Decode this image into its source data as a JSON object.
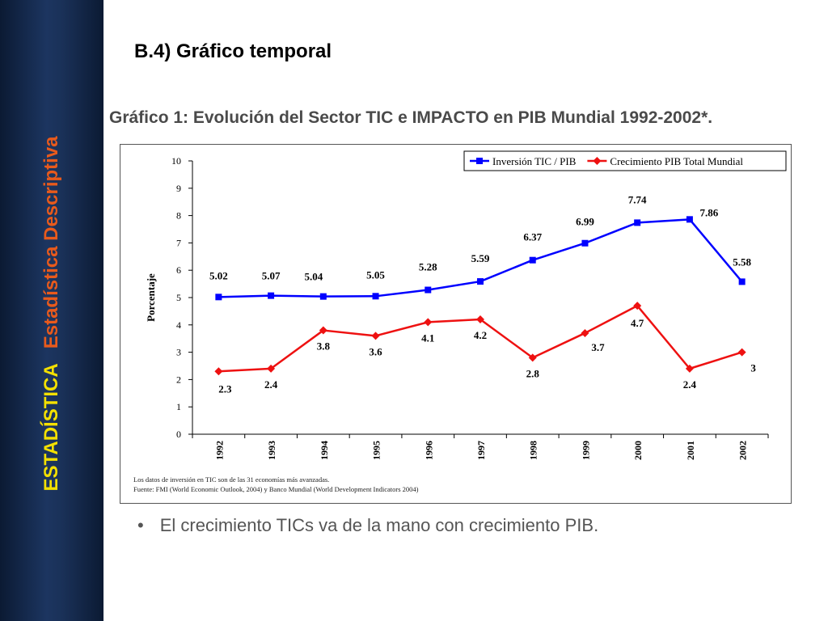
{
  "sidebar": {
    "main_label": "ESTADÍSTICA",
    "sub_label": "Estadística Descriptiva"
  },
  "heading": "B.4) Gráfico temporal",
  "chart_title": "Gráfico 1: Evolución del Sector TIC e IMPACTO en PIB Mundial 1992-2002*.",
  "chart_data": {
    "type": "line",
    "categories": [
      "1992",
      "1993",
      "1994",
      "1995",
      "1996",
      "1997",
      "1998",
      "1999",
      "2000",
      "2001",
      "2002"
    ],
    "series": [
      {
        "name": "Inversión TIC / PIB",
        "color": "#0000ff",
        "marker": "square",
        "values": [
          5.02,
          5.07,
          5.04,
          5.05,
          5.28,
          5.59,
          6.37,
          6.99,
          7.74,
          7.86,
          5.58
        ],
        "labels": [
          "5.02",
          "5.07",
          "5.04",
          "5.05",
          "5.28",
          "5.59",
          "6.37",
          "6.99",
          "7.74",
          "7.86",
          "5.58"
        ]
      },
      {
        "name": "Crecimiento PIB Total Mundial",
        "color": "#ee1111",
        "marker": "diamond",
        "values": [
          2.3,
          2.4,
          3.8,
          3.6,
          4.1,
          4.2,
          2.8,
          3.7,
          4.7,
          2.4,
          3
        ],
        "labels": [
          "2.3",
          "2.4",
          "3.8",
          "3.6",
          "4.1",
          "4.2",
          "2.8",
          "3.7",
          "4.7",
          "2.4",
          "3"
        ]
      }
    ],
    "ylabel": "Porcentaje",
    "ylim": [
      0,
      10
    ],
    "yticks": [
      "0",
      "1",
      "2",
      "3",
      "4",
      "5",
      "6",
      "7",
      "8",
      "9",
      "10"
    ],
    "legend_position": "top-right",
    "grid": false
  },
  "notes": {
    "line1": "Los datos de inversión en TIC son de las 31  economías más avanzadas.",
    "line2": "Fuente:  FMI (World Economic Outlook, 2004)  y Banco Mundial (World Development Indicators 2004)"
  },
  "bullet": {
    "symbol": "•",
    "text": "El crecimiento TICs va de la mano con crecimiento PIB."
  }
}
